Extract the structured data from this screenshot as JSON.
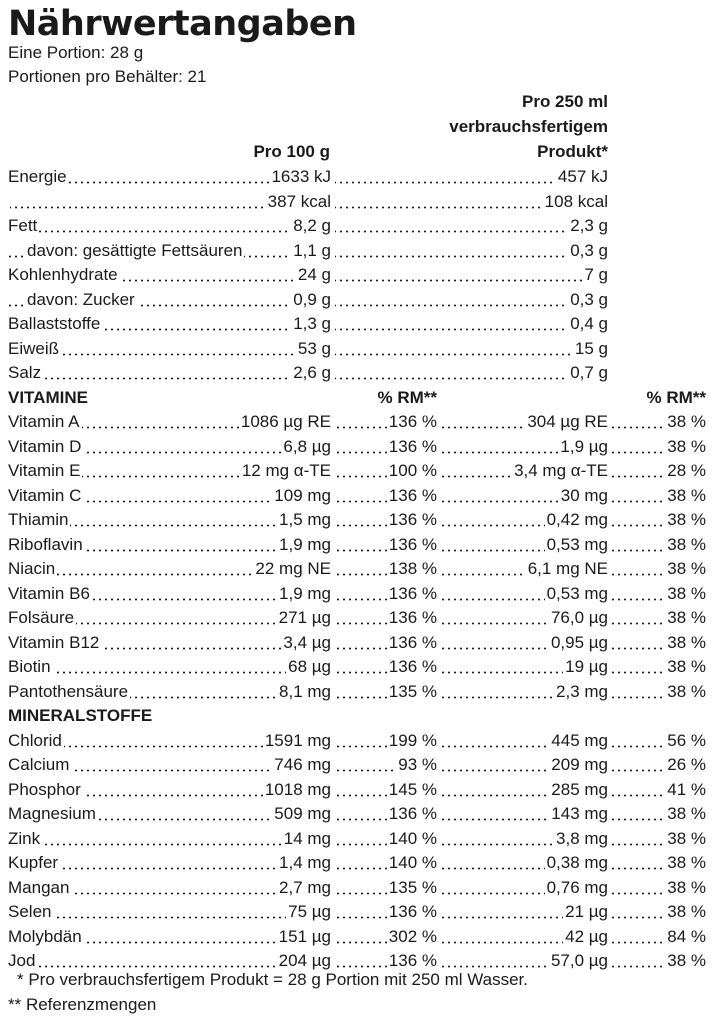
{
  "title": "Nährwertangaben",
  "serving": "Eine Portion: 28 g",
  "servings_per_container": "Portionen pro Behälter: 21",
  "headers": {
    "per100g": "Pro 100 g",
    "per250ml_line1": "Pro 250 ml",
    "per250ml_line2": "verbrauchsfertigem",
    "per250ml_line3": "Produkt*",
    "rm_a": "% RM**",
    "rm_b": "% RM**"
  },
  "nutrients": [
    {
      "label": "Energie",
      "v100": "1633 kJ",
      "v250": "457 kJ"
    },
    {
      "label": "",
      "v100": "387 kcal",
      "v250": "108 kcal"
    },
    {
      "label": "Fett",
      "v100": "8,2 g",
      "v250": "2,3 g"
    },
    {
      "label": "davon: gesättigte Fettsäuren",
      "v100": "1,1 g",
      "v250": "0,3 g",
      "indent": true
    },
    {
      "label": "Kohlenhydrate",
      "v100": "24 g",
      "v250": "7 g"
    },
    {
      "label": "davon: Zucker",
      "v100": "0,9 g",
      "v250": "0,3 g",
      "indent": true
    },
    {
      "label": "Ballaststoffe",
      "v100": "1,3 g",
      "v250": "0,4 g"
    },
    {
      "label": "Eiweiß",
      "v100": "53 g",
      "v250": "15 g"
    },
    {
      "label": "Salz",
      "v100": "2,6 g",
      "v250": "0,7 g"
    }
  ],
  "vitamins_heading": "VITAMINE",
  "vitamins": [
    {
      "label": "Vitamin A",
      "v100": "1086 µg RE",
      "rm100": "136 %",
      "v250": "304 µg RE",
      "rm250": "38 %"
    },
    {
      "label": "Vitamin D",
      "v100": "6,8 µg",
      "rm100": "136 %",
      "v250": "1,9 µg",
      "rm250": "38 %"
    },
    {
      "label": "Vitamin E",
      "v100": "12 mg α-TE",
      "rm100": "100 %",
      "v250": "3,4 mg α-TE",
      "rm250": "28 %"
    },
    {
      "label": "Vitamin C",
      "v100": "109 mg",
      "rm100": "136 %",
      "v250": "30 mg",
      "rm250": "38 %"
    },
    {
      "label": "Thiamin",
      "v100": "1,5 mg",
      "rm100": "136 %",
      "v250": "0,42 mg",
      "rm250": "38 %"
    },
    {
      "label": "Riboflavin",
      "v100": "1,9 mg",
      "rm100": "136 %",
      "v250": "0,53 mg",
      "rm250": "38 %"
    },
    {
      "label": "Niacin",
      "v100": "22 mg NE",
      "rm100": "138 %",
      "v250": "6,1 mg NE",
      "rm250": "38 %"
    },
    {
      "label": "Vitamin B6",
      "v100": "1,9 mg",
      "rm100": "136 %",
      "v250": "0,53 mg",
      "rm250": "38 %"
    },
    {
      "label": "Folsäure",
      "v100": "271 µg",
      "rm100": "136 %",
      "v250": "76,0 µg",
      "rm250": "38 %"
    },
    {
      "label": "Vitamin B12",
      "v100": "3,4 µg",
      "rm100": "136 %",
      "v250": "0,95 µg",
      "rm250": "38 %"
    },
    {
      "label": "Biotin",
      "v100": "68 µg",
      "rm100": "136 %",
      "v250": "19 µg",
      "rm250": "38 %"
    },
    {
      "label": "Pantothensäure",
      "v100": "8,1 mg",
      "rm100": "135 %",
      "v250": "2,3 mg",
      "rm250": "38 %"
    }
  ],
  "minerals_heading": "MINERALSTOFFE",
  "minerals": [
    {
      "label": "Chlorid",
      "v100": "1591 mg",
      "rm100": "199 %",
      "v250": "445 mg",
      "rm250": "56 %"
    },
    {
      "label": "Calcium",
      "v100": "746 mg",
      "rm100": "93 %",
      "v250": "209 mg",
      "rm250": "26 %"
    },
    {
      "label": "Phosphor",
      "v100": "1018 mg",
      "rm100": "145 %",
      "v250": "285 mg",
      "rm250": "41 %"
    },
    {
      "label": "Magnesium",
      "v100": "509 mg",
      "rm100": "136 %",
      "v250": "143 mg",
      "rm250": "38 %"
    },
    {
      "label": "Zink",
      "v100": "14 mg",
      "rm100": "140 %",
      "v250": "3,8 mg",
      "rm250": "38 %"
    },
    {
      "label": "Kupfer",
      "v100": "1,4 mg",
      "rm100": "140 %",
      "v250": "0,38 mg",
      "rm250": "38 %"
    },
    {
      "label": "Mangan",
      "v100": "2,7 mg",
      "rm100": "135 %",
      "v250": "0,76 mg",
      "rm250": "38 %"
    },
    {
      "label": "Selen",
      "v100": "75 µg",
      "rm100": "136 %",
      "v250": "21 µg",
      "rm250": "38 %"
    },
    {
      "label": "Molybdän",
      "v100": "151 µg",
      "rm100": "302 %",
      "v250": "42 µg",
      "rm250": "84 %"
    },
    {
      "label": "Jod",
      "v100": "204 µg",
      "rm100": "136 %",
      "v250": "57,0 µg",
      "rm250": "38 %"
    }
  ],
  "footnote1": "* Pro verbrauchsfertigem Produkt = 28 g Portion mit 250 ml Wasser.",
  "footnote2": "** Referenzmengen"
}
